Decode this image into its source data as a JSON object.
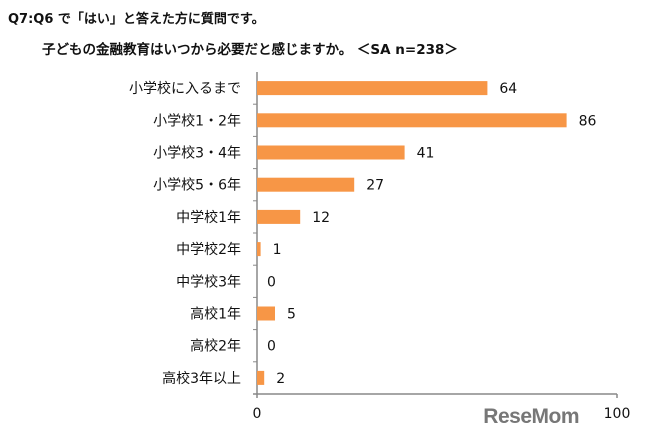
{
  "chart_data": {
    "type": "bar",
    "orientation": "horizontal",
    "title_line1": "Q7:Q6 で「はい」と答えた方に質問です。",
    "title_line2": "子どもの金融教育はいつから必要だと感じますか。 ＜SA n=238＞",
    "categories": [
      "小学校に入るまで",
      "小学校1・2年",
      "小学校3・4年",
      "小学校5・6年",
      "中学校1年",
      "中学校2年",
      "中学校3年",
      "高校1年",
      "高校2年",
      "高校3年以上"
    ],
    "values": [
      64,
      86,
      41,
      27,
      12,
      1,
      0,
      5,
      0,
      2
    ],
    "xlim": [
      0,
      100
    ],
    "xticks": [
      "0",
      "100"
    ],
    "xlabel": "",
    "ylabel": "",
    "grid": false,
    "bar_color": "#F79646"
  },
  "watermark": "ReseMom"
}
